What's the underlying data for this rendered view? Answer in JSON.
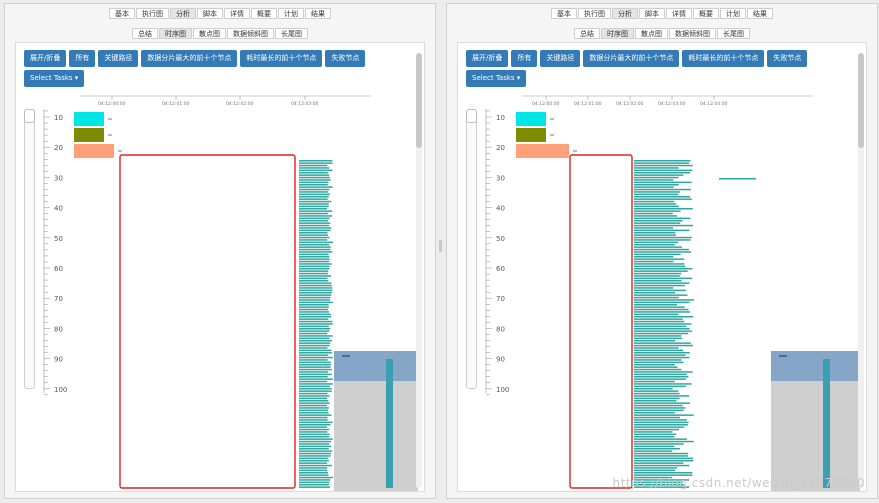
{
  "top_tabs": [
    "基本",
    "执行图",
    "分析",
    "脚本",
    "详情",
    "概要",
    "计划",
    "结果"
  ],
  "top_active": 2,
  "sub_tabs": [
    "总结",
    "时序图",
    "散点图",
    "数据倾斜图",
    "长尾图"
  ],
  "sub_active": 1,
  "buttons": {
    "expand": "展开/折叠",
    "all": "所有",
    "critical_path": "关键路径",
    "top10_shards": "数据分片最大的前十个节点",
    "top10_slowest": "耗时最长的前十个节点",
    "failed": "失败节点",
    "select_tasks": "Select Tasks ▾"
  },
  "axis": {
    "y_ticks": [
      "10",
      "20",
      "30",
      "40",
      "50",
      "60",
      "70",
      "80",
      "90",
      "100"
    ],
    "time_ticks": [
      "04:12:00:00",
      "04:12:01:00",
      "04:12:02:00",
      "04:12:03:00",
      "04:12:04:00"
    ]
  },
  "colors": {
    "bar": "#30a6a0",
    "task1": "#00e5e5",
    "task2": "#7d8c00",
    "task3": "#ffa07a",
    "highlight": "#e02020",
    "minimap_top": "#86a6c8",
    "minimap_body": "#cfcfcf"
  },
  "watermark": "https://blog.csdn.net/weixin_43970890"
}
